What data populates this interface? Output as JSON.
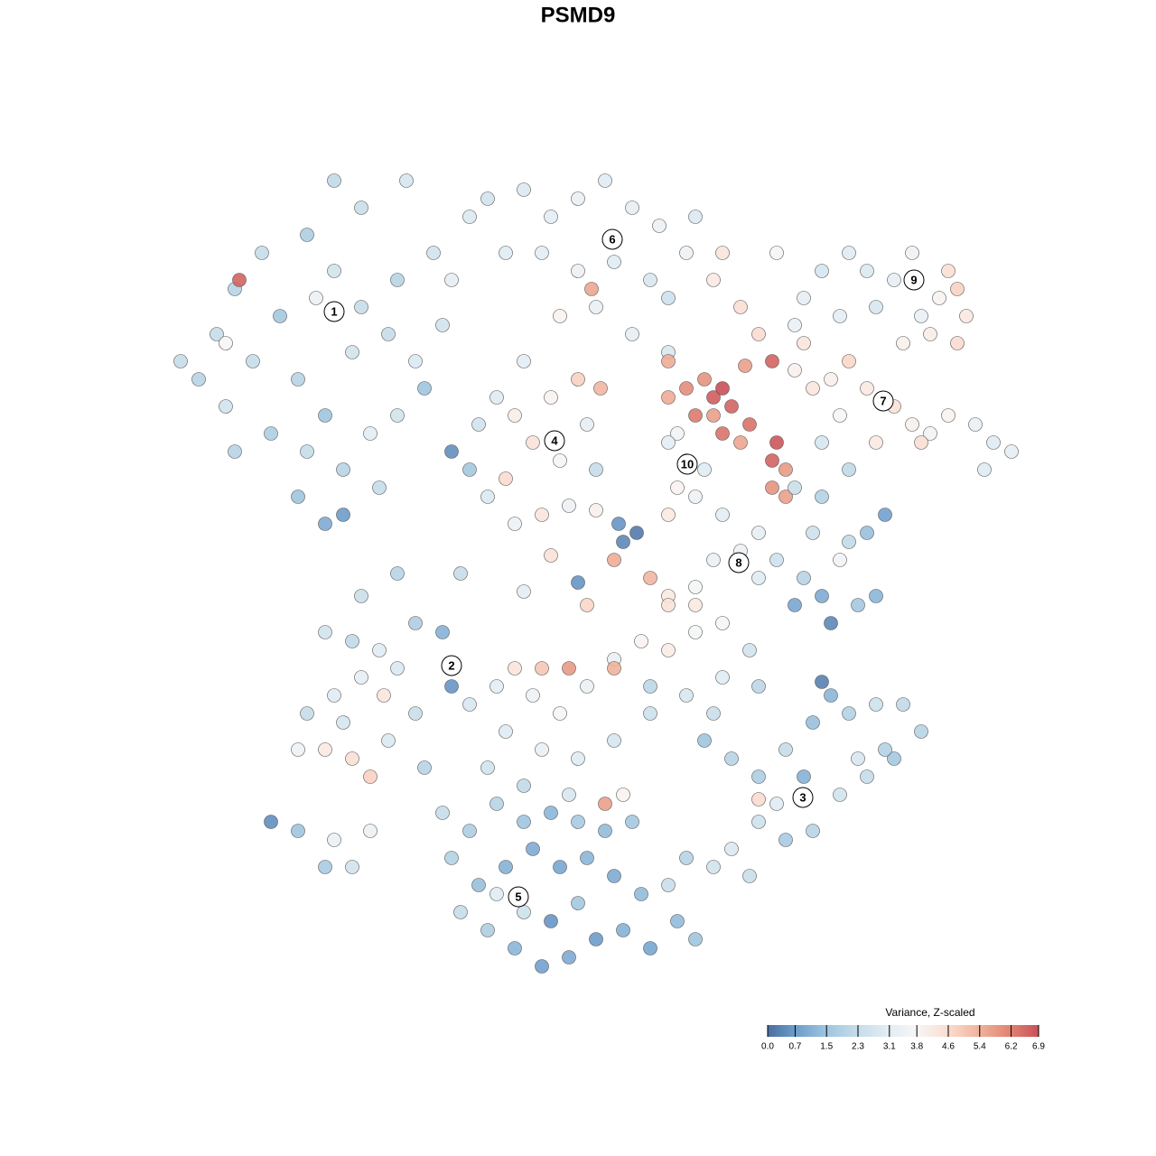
{
  "chart_data": {
    "type": "scatter",
    "title": "PSMD9",
    "xlim": [
      -46,
      50
    ],
    "ylim": [
      -47,
      47
    ],
    "x": [
      -42,
      -40,
      -38,
      -35,
      -30,
      -27,
      -24,
      -20,
      -16,
      -12,
      -33,
      -36,
      -31,
      -28,
      -25,
      -21,
      -18,
      -15,
      -34,
      -30,
      -26,
      -23,
      -20,
      -31,
      -28,
      -26,
      -22,
      -39,
      -44,
      -38,
      -37.5,
      -39,
      -29,
      -17,
      -14,
      -10,
      -8,
      -19,
      -24,
      -27,
      -6,
      -3,
      0,
      3,
      6,
      9,
      12,
      -4,
      0,
      4,
      8,
      2,
      -2,
      1.5,
      6,
      10,
      13,
      10,
      15,
      18,
      20,
      16,
      -12,
      -14,
      -10,
      -7,
      -4,
      -1,
      2,
      1,
      -3,
      -6,
      -9,
      -11,
      -5,
      -8,
      -2,
      0,
      2.5,
      -7,
      10,
      12,
      14,
      15,
      16,
      17,
      13,
      15,
      16,
      19,
      18,
      22,
      21.5,
      23,
      21.5,
      23,
      21.5,
      18.5,
      10,
      11,
      10,
      12,
      14,
      11,
      13,
      10,
      24,
      26,
      28,
      30,
      32,
      35,
      37,
      39,
      41,
      44,
      46,
      48,
      45,
      38,
      33,
      29,
      25,
      36,
      27,
      30,
      27,
      24,
      25,
      27,
      30,
      32,
      35,
      37,
      38,
      40,
      41,
      42,
      43,
      42,
      39,
      33,
      29,
      22,
      24,
      16,
      18,
      20,
      15,
      13,
      10,
      8,
      22,
      25,
      27,
      24,
      28,
      31,
      33,
      29,
      30,
      32,
      34,
      26,
      20,
      5,
      6.5,
      4.5,
      2,
      -3,
      -13,
      -20,
      0,
      1,
      4,
      -6,
      -28,
      -25,
      -22,
      -18,
      -15,
      -14,
      -20,
      -24,
      -27,
      -30,
      -31,
      -28,
      -25,
      -23,
      -21,
      -18,
      -26,
      -21.5,
      -12,
      -9,
      -17,
      -24,
      -7,
      -5,
      -2,
      1,
      4,
      7,
      10,
      13,
      16,
      19,
      20,
      16,
      12,
      8,
      4,
      0,
      -4,
      -8,
      -10,
      -6,
      -1,
      3,
      5,
      -1,
      4,
      -4,
      10,
      13,
      8,
      15,
      14,
      17,
      20,
      23,
      26,
      28,
      30,
      33,
      36,
      38,
      35,
      32,
      29,
      26,
      23,
      20,
      17,
      15,
      19,
      22,
      27,
      31,
      25,
      34,
      20,
      -15,
      -12,
      -9,
      -6,
      -3,
      0,
      3,
      6,
      -14,
      -11,
      -8,
      -5,
      -2,
      1,
      4,
      7,
      -13,
      -10,
      -7,
      -4,
      -1,
      2,
      5,
      8,
      11,
      13,
      -6,
      -9,
      0,
      -3,
      10,
      12,
      -34,
      -31,
      -27,
      -25,
      -23,
      -28
    ],
    "y": [
      22,
      27,
      32,
      36,
      38,
      34,
      30,
      33,
      36,
      40,
      29,
      24,
      22,
      18,
      25,
      27,
      24,
      28,
      16,
      14,
      12,
      16,
      18,
      9,
      6,
      7,
      10,
      19,
      24,
      14,
      33,
      26,
      31,
      21,
      33,
      42,
      36,
      44,
      41,
      44,
      43,
      40,
      42,
      44,
      41,
      39,
      36,
      36,
      34,
      35,
      33,
      30,
      29,
      32,
      27,
      31,
      40,
      25,
      33,
      30,
      27,
      36,
      12,
      14,
      9,
      6,
      7,
      8,
      12,
      17,
      20,
      24,
      20,
      17,
      15,
      11,
      13,
      22,
      21,
      18,
      20,
      21,
      22,
      20,
      21,
      19,
      18,
      18,
      16,
      17,
      15,
      15,
      13,
      12,
      10,
      9,
      24,
      23.5,
      24,
      16,
      15,
      13,
      12,
      10,
      9,
      7,
      23,
      21,
      22,
      24,
      21,
      19,
      17,
      16,
      18,
      17,
      15,
      14,
      12,
      15,
      15,
      18,
      26,
      26,
      15,
      12,
      9,
      10,
      31,
      34,
      36,
      34,
      33,
      36,
      29,
      31,
      34,
      32,
      29,
      26,
      27,
      30,
      29,
      36,
      28,
      7,
      3,
      0,
      2,
      -1,
      -2,
      0,
      2,
      0,
      -2,
      -3,
      -5,
      -3,
      -2,
      2,
      4,
      5,
      7,
      5,
      5,
      4,
      5,
      6,
      7.5,
      2.5,
      0.5,
      0.5,
      -0.5,
      -3,
      2,
      -1.5,
      -6,
      -7,
      -8,
      -5,
      -6,
      -12,
      -10,
      -11,
      -13,
      -15,
      -19,
      -19,
      -20,
      -22,
      -18,
      -15,
      -16,
      -13,
      -14,
      -12,
      -21,
      -2,
      -10,
      -13,
      -15,
      -12,
      -9,
      -7,
      -8,
      -6,
      -5,
      -8,
      -12,
      -11,
      -13,
      -15,
      -18,
      -20,
      -19,
      -17,
      -21,
      -23,
      -24,
      -25,
      -24,
      -10,
      -10,
      -10,
      -3,
      -3,
      -12,
      -15,
      -18,
      -20,
      -22,
      -19,
      -16,
      -13,
      -15,
      -14,
      -14,
      -17,
      -20,
      -22,
      -24,
      -28,
      -29,
      -27,
      -30,
      -32,
      -33,
      -25,
      -11.5,
      -20,
      -22,
      -19,
      -24.5,
      -26,
      -28,
      -25,
      -27,
      -26,
      -27,
      -28,
      -27,
      -31,
      -34,
      -32,
      -30,
      -32,
      -31,
      -33,
      -35,
      -37,
      -39,
      -41,
      -43,
      -42,
      -40,
      -39,
      -41,
      -38,
      -40,
      -37,
      -35,
      -36,
      -38,
      -34,
      -31,
      -27,
      -28,
      -29,
      -32,
      -28,
      -32
    ],
    "values": [
      2.0,
      2.3,
      2.0,
      2.3,
      1.8,
      2.6,
      2.3,
      2.0,
      2.6,
      2.9,
      1.6,
      2.3,
      2.0,
      1.5,
      2.6,
      2.3,
      2.9,
      2.6,
      1.8,
      2.3,
      2.0,
      3.1,
      2.6,
      1.5,
      1.0,
      0.7,
      2.3,
      2.6,
      2.3,
      2.0,
      6.6,
      3.8,
      3.4,
      1.5,
      3.2,
      2.6,
      3.0,
      2.7,
      2.4,
      2.2,
      2.9,
      3.1,
      3.3,
      3.0,
      3.2,
      3.4,
      3.5,
      3.1,
      3.4,
      3.0,
      2.8,
      3.3,
      3.9,
      5.6,
      3.2,
      2.5,
      2.9,
      2.8,
      4.2,
      4.5,
      4.6,
      4.3,
      1.6,
      0.5,
      2.9,
      3.5,
      4.3,
      3.4,
      2.3,
      3.2,
      3.9,
      3.1,
      3.0,
      2.6,
      4.4,
      4.6,
      3.7,
      4.8,
      5.3,
      4.1,
      5.5,
      6.0,
      5.9,
      6.7,
      6.9,
      6.6,
      6.3,
      5.7,
      6.4,
      6.4,
      5.6,
      6.8,
      6.6,
      5.8,
      5.9,
      5.7,
      6.6,
      5.7,
      5.5,
      3.6,
      3.1,
      3.6,
      3.0,
      3.9,
      3.5,
      4.2,
      4.0,
      4.3,
      4.0,
      4.7,
      4.2,
      4.4,
      4.0,
      3.6,
      3.9,
      3.3,
      3.0,
      3.2,
      3.0,
      4.5,
      4.2,
      3.8,
      4.3,
      4.0,
      2.7,
      2.2,
      1.9,
      2.4,
      3.2,
      2.7,
      3.0,
      2.9,
      3.2,
      3.5,
      3.3,
      3.9,
      4.5,
      4.8,
      4.2,
      4.6,
      4.1,
      2.8,
      3.1,
      3.7,
      3.3,
      3.1,
      3.4,
      3.0,
      3.3,
      3.7,
      4.2,
      5.3,
      2.5,
      2.0,
      1.0,
      0.9,
      0.4,
      1.6,
      1.2,
      3.6,
      2.2,
      1.4,
      0.8,
      2.5,
      3.2,
      0.4,
      0.2,
      0.6,
      4.0,
      4.4,
      2.3,
      2.0,
      0.6,
      4.7,
      5.5,
      3.1,
      2.6,
      2.2,
      3.0,
      1.8,
      1.1,
      0.6,
      2.9,
      3.2,
      3.0,
      2.3,
      3.5,
      4.2,
      4.5,
      4.8,
      2.9,
      2.4,
      2.7,
      4.3,
      2.8,
      3.1,
      2.0,
      2.4,
      4.3,
      3.5,
      3.7,
      3.4,
      3.3,
      3.9,
      4.1,
      3.7,
      3.8,
      2.6,
      2.1,
      3.0,
      2.8,
      2.5,
      2.7,
      3.0,
      3.3,
      3.0,
      2.6,
      2.2,
      2.8,
      5.7,
      3.9,
      5.8,
      5.4,
      5.0,
      4.4,
      4.2,
      2.1,
      2.4,
      1.5,
      2.0,
      1.8,
      2.3,
      1.4,
      1.2,
      1.9,
      2.5,
      2.2,
      2.0,
      1.6,
      2.3,
      2.6,
      2.0,
      1.7,
      2.5,
      2.9,
      2.6,
      2.4,
      3.0,
      0.3,
      2.8,
      1.1,
      1.9,
      4.6,
      2.3,
      1.8,
      2.0,
      1.5,
      1.2,
      1.7,
      1.3,
      1.6,
      1.9,
      1.4,
      1.1,
      1.0,
      0.9,
      1.2,
      1.0,
      1.3,
      2.3,
      1.8,
      1.2,
      0.8,
      1.0,
      0.7,
      1.1,
      0.9,
      1.3,
      1.5,
      2.5,
      3.0,
      1.6,
      0.6,
      2.4,
      2.0,
      0.5,
      1.5,
      3.3,
      2.6,
      3.4,
      1.7
    ],
    "clusters": [
      {
        "label": "1",
        "x": -27,
        "y": 29.5
      },
      {
        "label": "2",
        "x": -14,
        "y": -9.7
      },
      {
        "label": "3",
        "x": 24.9,
        "y": -24.3
      },
      {
        "label": "4",
        "x": -2.6,
        "y": 15.2
      },
      {
        "label": "5",
        "x": -6.6,
        "y": -35.3
      },
      {
        "label": "6",
        "x": 3.8,
        "y": 37.5
      },
      {
        "label": "7",
        "x": 33.8,
        "y": 19.6
      },
      {
        "label": "8",
        "x": 17.8,
        "y": 1.7
      },
      {
        "label": "9",
        "x": 37.2,
        "y": 33
      },
      {
        "label": "10",
        "x": 12.1,
        "y": 12.6
      }
    ],
    "colorbar": {
      "title": "Variance, Z-scaled",
      "ticks": [
        {
          "value": 0,
          "label": "0.0"
        },
        0.7,
        1.5,
        2.3,
        3.1,
        3.8,
        4.6,
        5.4,
        6.2,
        6.9
      ],
      "colors": [
        "#4a6d9e",
        "#6c9ccb",
        "#9fc5df",
        "#c6dde9",
        "#e3edf4",
        "#f7f6f5",
        "#fbdccf",
        "#f0b29b",
        "#e08170",
        "#c94f58"
      ]
    }
  }
}
